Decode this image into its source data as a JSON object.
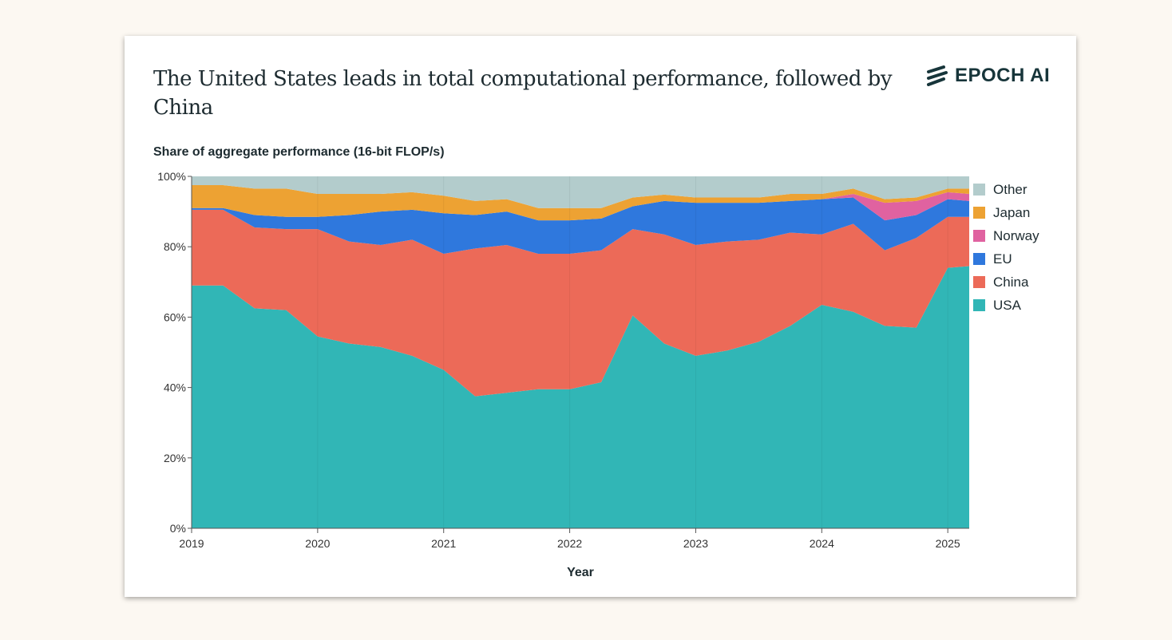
{
  "title": "The United States leads in total computational performance, followed by China",
  "logo": "EPOCH AI",
  "chart_data": {
    "type": "area",
    "stacked": true,
    "title": "The United States leads in total computational performance, followed by China",
    "ylabel": "Share of aggregate performance (16-bit FLOP/s)",
    "xlabel": "Year",
    "xlim": [
      2019,
      2025.17
    ],
    "ylim": [
      0,
      100
    ],
    "x_ticks": [
      "2019",
      "2020",
      "2021",
      "2022",
      "2023",
      "2024",
      "2025"
    ],
    "y_ticks": [
      "0%",
      "20%",
      "40%",
      "60%",
      "80%",
      "100%"
    ],
    "legend_position": "right",
    "x": [
      2019.0,
      2019.25,
      2019.5,
      2019.75,
      2020.0,
      2020.25,
      2020.5,
      2020.75,
      2021.0,
      2021.25,
      2021.5,
      2021.75,
      2022.0,
      2022.25,
      2022.5,
      2022.75,
      2023.0,
      2023.25,
      2023.5,
      2023.75,
      2024.0,
      2024.25,
      2024.5,
      2024.75,
      2025.0,
      2025.17
    ],
    "series": [
      {
        "name": "USA",
        "color": "#31b6b6",
        "values": [
          69,
          69,
          62.5,
          62,
          54.5,
          52.5,
          51.5,
          49,
          45,
          37.5,
          38.5,
          39.5,
          39.5,
          41.5,
          60.5,
          52.5,
          49,
          50.5,
          53,
          57.5,
          63.5,
          61.5,
          57.5,
          57,
          74,
          74.5
        ]
      },
      {
        "name": "China",
        "color": "#ec6a58",
        "values": [
          21.5,
          21.5,
          23,
          23,
          30.5,
          29,
          29,
          33,
          33,
          42,
          42,
          38.5,
          38.5,
          37.5,
          24.5,
          31,
          31.5,
          31,
          29,
          26.5,
          20,
          25,
          21.5,
          25.5,
          14.5,
          14
        ]
      },
      {
        "name": "EU",
        "color": "#2f78dd",
        "values": [
          0.5,
          0.5,
          3.5,
          3.5,
          3.5,
          7.5,
          9.5,
          8.5,
          11.5,
          9.5,
          9.5,
          9.5,
          9.5,
          9,
          6.5,
          9.5,
          12,
          11,
          10.5,
          9,
          10,
          7.5,
          8.5,
          6.5,
          5,
          4.5
        ]
      },
      {
        "name": "Norway",
        "color": "#e062a0",
        "values": [
          0,
          0,
          0,
          0,
          0,
          0,
          0,
          0,
          0,
          0,
          0,
          0,
          0,
          0,
          0,
          0,
          0,
          0,
          0,
          0,
          0,
          1,
          5,
          4,
          2,
          2
        ]
      },
      {
        "name": "Japan",
        "color": "#eda233",
        "values": [
          6.5,
          6.5,
          7.5,
          8,
          6.5,
          6,
          5,
          5,
          5,
          4,
          3.5,
          3.5,
          3.5,
          3,
          2.5,
          1.8,
          1.5,
          1.5,
          1.5,
          2,
          1.5,
          1.5,
          1,
          1,
          1,
          1.5
        ]
      },
      {
        "name": "Other",
        "color": "#b3cccc",
        "values": [
          2.5,
          2.5,
          3.5,
          3.5,
          5,
          5,
          5,
          4.5,
          5.5,
          7,
          6.5,
          9,
          9,
          9,
          6,
          5.2,
          6,
          6,
          6,
          5,
          5,
          3.5,
          6.5,
          6,
          3.5,
          3.5
        ]
      }
    ],
    "legend": [
      "Other",
      "Japan",
      "Norway",
      "EU",
      "China",
      "USA"
    ]
  }
}
